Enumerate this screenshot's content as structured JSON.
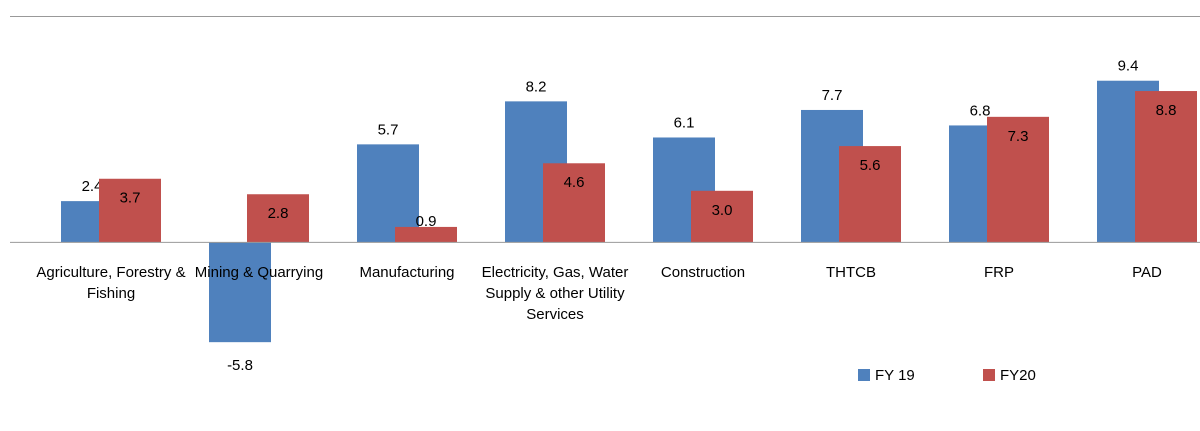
{
  "chart_data": {
    "type": "bar",
    "categories": [
      "Agriculture, Forestry & Fishing",
      "Mining & Quarrying",
      "Manufacturing",
      "Electricity, Gas, Water Supply & other Utility Services",
      "Construction",
      "THTCB",
      "FRP",
      "PAD"
    ],
    "series": [
      {
        "name": "FY 19",
        "color": "#4f81bd",
        "values": [
          2.4,
          -5.8,
          5.7,
          8.2,
          6.1,
          7.7,
          6.8,
          9.4
        ],
        "value_labels": [
          "2.4",
          "-5.8",
          "5.7",
          "8.2",
          "6.1",
          "7.7",
          "6.8",
          "9.4"
        ]
      },
      {
        "name": "FY20",
        "color": "#c0504d",
        "values": [
          3.7,
          2.8,
          0.9,
          4.6,
          3.0,
          5.6,
          7.3,
          8.8
        ],
        "value_labels": [
          "3.7",
          "2.8",
          "0.9",
          "4.6",
          "3.0",
          "5.6",
          "7.3",
          "8.8"
        ]
      }
    ],
    "ylim": [
      -7,
      11
    ]
  }
}
